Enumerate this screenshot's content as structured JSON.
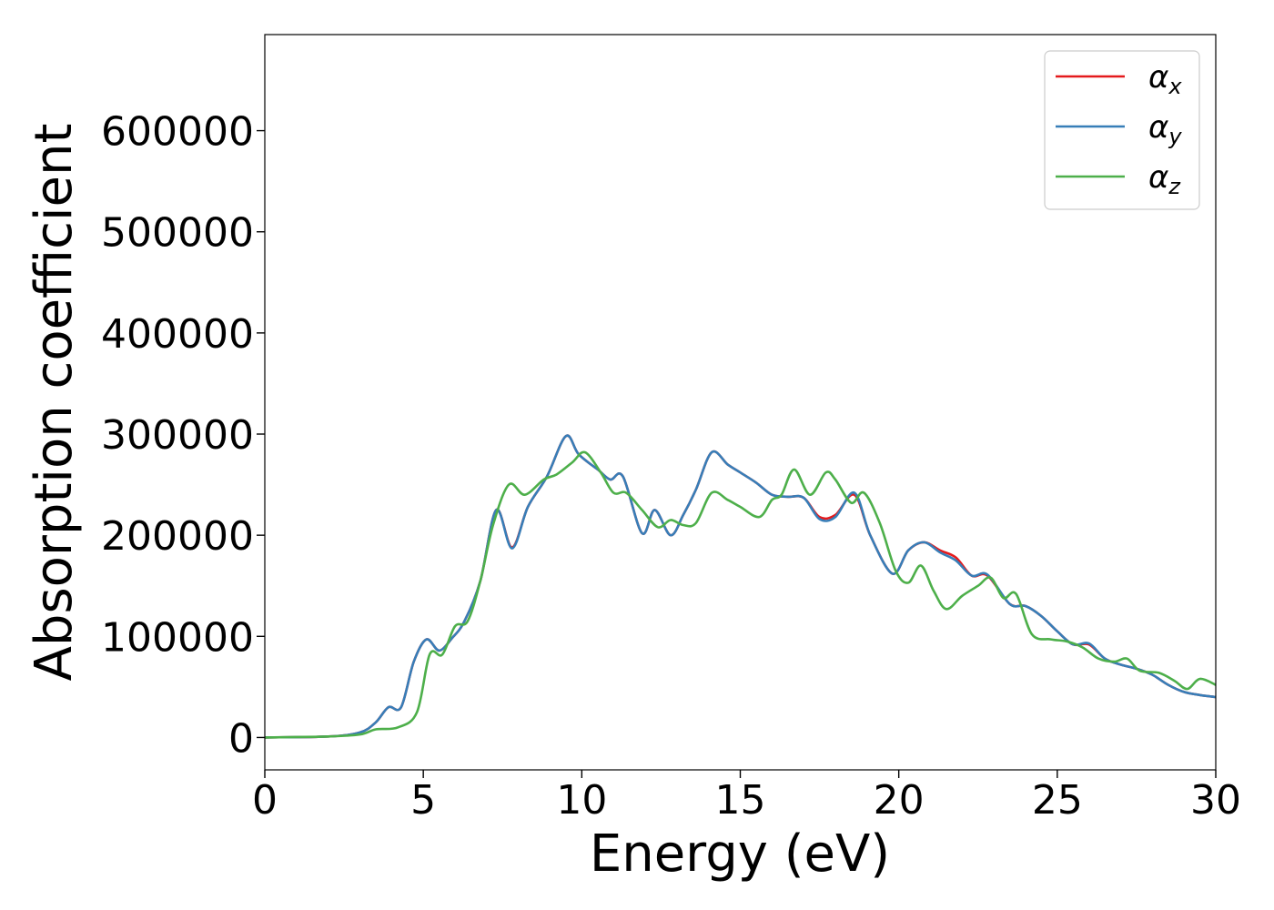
{
  "chart_data": {
    "type": "line",
    "xlabel": "Energy (eV)",
    "ylabel": "Absorption coefficient",
    "xlim": [
      0,
      30
    ],
    "ylim": [
      -32000,
      695000
    ],
    "x_ticks": [
      "0",
      "5",
      "10",
      "15",
      "20",
      "25",
      "30"
    ],
    "y_ticks": [
      "0",
      "100000",
      "200000",
      "300000",
      "400000",
      "500000",
      "600000"
    ],
    "grid": false,
    "legend_position": "top-right",
    "series": [
      {
        "name": "αx",
        "symbol": "α",
        "subscript": "x",
        "color": "#e41a1c",
        "points": [
          [
            0,
            0
          ],
          [
            2,
            1000
          ],
          [
            3,
            5000
          ],
          [
            3.5,
            15000
          ],
          [
            3.9,
            30000
          ],
          [
            4.3,
            30000
          ],
          [
            4.7,
            75000
          ],
          [
            5.1,
            97000
          ],
          [
            5.5,
            86000
          ],
          [
            5.9,
            98000
          ],
          [
            6.3,
            115000
          ],
          [
            6.8,
            155000
          ],
          [
            7.3,
            225000
          ],
          [
            7.8,
            188000
          ],
          [
            8.3,
            228000
          ],
          [
            8.9,
            258000
          ],
          [
            9.5,
            298000
          ],
          [
            9.9,
            280000
          ],
          [
            10.5,
            265000
          ],
          [
            10.9,
            255000
          ],
          [
            11.3,
            258000
          ],
          [
            11.9,
            202000
          ],
          [
            12.3,
            225000
          ],
          [
            12.8,
            200000
          ],
          [
            13.2,
            220000
          ],
          [
            13.6,
            245000
          ],
          [
            14.1,
            282000
          ],
          [
            14.6,
            270000
          ],
          [
            15.0,
            262000
          ],
          [
            15.5,
            252000
          ],
          [
            16.0,
            240000
          ],
          [
            16.5,
            238000
          ],
          [
            17.0,
            237000
          ],
          [
            17.5,
            218000
          ],
          [
            18.0,
            220000
          ],
          [
            18.6,
            240000
          ],
          [
            19.1,
            200000
          ],
          [
            19.8,
            162000
          ],
          [
            20.3,
            185000
          ],
          [
            20.8,
            193000
          ],
          [
            21.3,
            185000
          ],
          [
            21.8,
            178000
          ],
          [
            22.3,
            160000
          ],
          [
            22.8,
            160000
          ],
          [
            23.5,
            132000
          ],
          [
            24.0,
            130000
          ],
          [
            24.5,
            120000
          ],
          [
            25.0,
            105000
          ],
          [
            25.5,
            92000
          ],
          [
            26.0,
            92000
          ],
          [
            26.5,
            78000
          ],
          [
            27.0,
            72000
          ],
          [
            27.5,
            68000
          ],
          [
            28.0,
            62000
          ],
          [
            28.5,
            52000
          ],
          [
            29.0,
            45000
          ],
          [
            29.5,
            42000
          ],
          [
            30,
            40000
          ]
        ]
      },
      {
        "name": "αy",
        "symbol": "α",
        "subscript": "y",
        "color": "#377eb8",
        "points": [
          [
            0,
            0
          ],
          [
            2,
            1000
          ],
          [
            3,
            5000
          ],
          [
            3.5,
            15000
          ],
          [
            3.9,
            30000
          ],
          [
            4.3,
            30000
          ],
          [
            4.7,
            75000
          ],
          [
            5.1,
            97000
          ],
          [
            5.5,
            86000
          ],
          [
            5.9,
            98000
          ],
          [
            6.3,
            115000
          ],
          [
            6.8,
            155000
          ],
          [
            7.3,
            225000
          ],
          [
            7.8,
            187000
          ],
          [
            8.3,
            228000
          ],
          [
            8.9,
            258000
          ],
          [
            9.5,
            298000
          ],
          [
            9.9,
            280000
          ],
          [
            10.5,
            265000
          ],
          [
            10.9,
            255000
          ],
          [
            11.3,
            258000
          ],
          [
            11.9,
            202000
          ],
          [
            12.3,
            225000
          ],
          [
            12.8,
            200000
          ],
          [
            13.2,
            220000
          ],
          [
            13.6,
            245000
          ],
          [
            14.1,
            282000
          ],
          [
            14.6,
            270000
          ],
          [
            15.0,
            262000
          ],
          [
            15.5,
            252000
          ],
          [
            16.0,
            240000
          ],
          [
            16.5,
            238000
          ],
          [
            17.0,
            237000
          ],
          [
            17.5,
            216000
          ],
          [
            18.0,
            218000
          ],
          [
            18.6,
            242000
          ],
          [
            19.1,
            200000
          ],
          [
            19.8,
            162000
          ],
          [
            20.3,
            185000
          ],
          [
            20.8,
            193000
          ],
          [
            21.3,
            183000
          ],
          [
            21.8,
            175000
          ],
          [
            22.3,
            160000
          ],
          [
            22.8,
            161000
          ],
          [
            23.5,
            132000
          ],
          [
            24.0,
            130000
          ],
          [
            24.5,
            120000
          ],
          [
            25.0,
            105000
          ],
          [
            25.5,
            92000
          ],
          [
            26.0,
            93000
          ],
          [
            26.5,
            78000
          ],
          [
            27.0,
            72000
          ],
          [
            27.5,
            68000
          ],
          [
            28.0,
            62000
          ],
          [
            28.5,
            52000
          ],
          [
            29.0,
            45000
          ],
          [
            29.5,
            42000
          ],
          [
            30,
            40000
          ]
        ]
      },
      {
        "name": "αz",
        "symbol": "α",
        "subscript": "z",
        "color": "#4daf4a",
        "points": [
          [
            0,
            0
          ],
          [
            2,
            1000
          ],
          [
            3,
            3000
          ],
          [
            3.5,
            8000
          ],
          [
            4.2,
            10000
          ],
          [
            4.8,
            25000
          ],
          [
            5.2,
            82000
          ],
          [
            5.6,
            82000
          ],
          [
            6.0,
            110000
          ],
          [
            6.4,
            115000
          ],
          [
            6.8,
            155000
          ],
          [
            7.2,
            210000
          ],
          [
            7.7,
            250000
          ],
          [
            8.2,
            240000
          ],
          [
            8.8,
            255000
          ],
          [
            9.2,
            260000
          ],
          [
            9.7,
            272000
          ],
          [
            10.1,
            282000
          ],
          [
            10.6,
            262000
          ],
          [
            11.0,
            242000
          ],
          [
            11.4,
            242000
          ],
          [
            11.9,
            225000
          ],
          [
            12.4,
            208000
          ],
          [
            12.8,
            215000
          ],
          [
            13.2,
            210000
          ],
          [
            13.6,
            212000
          ],
          [
            14.1,
            242000
          ],
          [
            14.6,
            235000
          ],
          [
            15.0,
            228000
          ],
          [
            15.6,
            218000
          ],
          [
            16.0,
            235000
          ],
          [
            16.3,
            240000
          ],
          [
            16.7,
            265000
          ],
          [
            17.2,
            240000
          ],
          [
            17.7,
            262000
          ],
          [
            18.0,
            255000
          ],
          [
            18.5,
            232000
          ],
          [
            18.9,
            242000
          ],
          [
            19.4,
            212000
          ],
          [
            19.9,
            165000
          ],
          [
            20.3,
            153000
          ],
          [
            20.7,
            170000
          ],
          [
            21.1,
            145000
          ],
          [
            21.5,
            127000
          ],
          [
            22.0,
            140000
          ],
          [
            22.5,
            150000
          ],
          [
            22.9,
            158000
          ],
          [
            23.3,
            138000
          ],
          [
            23.7,
            142000
          ],
          [
            24.2,
            102000
          ],
          [
            24.8,
            97000
          ],
          [
            25.3,
            95000
          ],
          [
            25.8,
            89000
          ],
          [
            26.3,
            78000
          ],
          [
            26.8,
            75000
          ],
          [
            27.2,
            78000
          ],
          [
            27.6,
            66000
          ],
          [
            28.2,
            64000
          ],
          [
            28.7,
            56000
          ],
          [
            29.1,
            48000
          ],
          [
            29.5,
            58000
          ],
          [
            30,
            52000
          ]
        ]
      }
    ]
  }
}
